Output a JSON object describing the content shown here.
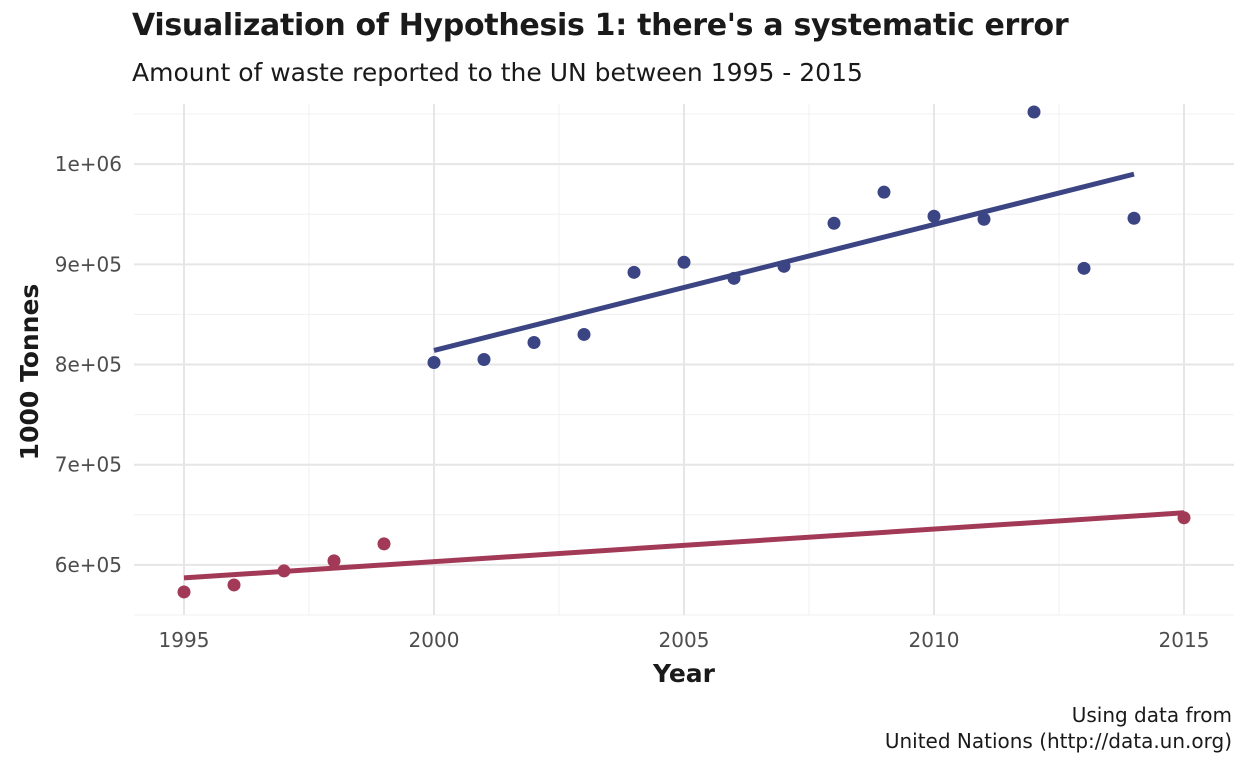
{
  "chart_data": {
    "type": "scatter",
    "title": "Visualization of Hypothesis 1: there's a systematic error",
    "subtitle": "Amount of waste reported to the UN between 1995 - 2015",
    "xlabel": "Year",
    "ylabel": "1000 Tonnes",
    "xlim": [
      1994,
      2016
    ],
    "ylim": [
      550000,
      1060000
    ],
    "x_ticks": [
      1995,
      2000,
      2005,
      2010,
      2015
    ],
    "x_tick_labels": [
      "1995",
      "2000",
      "2005",
      "2010",
      "2015"
    ],
    "y_ticks": [
      600000,
      700000,
      800000,
      900000,
      1000000
    ],
    "y_tick_labels": [
      "6e+05",
      "7e+05",
      "8e+05",
      "9e+05",
      "1e+06"
    ],
    "grid": true,
    "series": [
      {
        "color": "#3c4584",
        "x": [
          2000,
          2001,
          2002,
          2003,
          2004,
          2005,
          2006,
          2007,
          2008,
          2009,
          2010,
          2011,
          2012,
          2013,
          2014
        ],
        "values": [
          802000,
          805000,
          822000,
          830000,
          892000,
          902000,
          886000,
          898000,
          941000,
          972000,
          948000,
          945000,
          1052000,
          896000,
          946000
        ],
        "trend": {
          "x": [
            2000,
            2014
          ],
          "y": [
            814000,
            990000
          ]
        }
      },
      {
        "color": "#a23a57",
        "x": [
          1995,
          1996,
          1997,
          1998,
          1999,
          2015
        ],
        "values": [
          573000,
          580000,
          594000,
          604000,
          621000,
          647000
        ],
        "trend": {
          "x": [
            1995,
            2015
          ],
          "y": [
            587000,
            652000
          ]
        }
      }
    ],
    "caption": [
      "Using data from",
      "United Nations (http://data.un.org)"
    ]
  }
}
